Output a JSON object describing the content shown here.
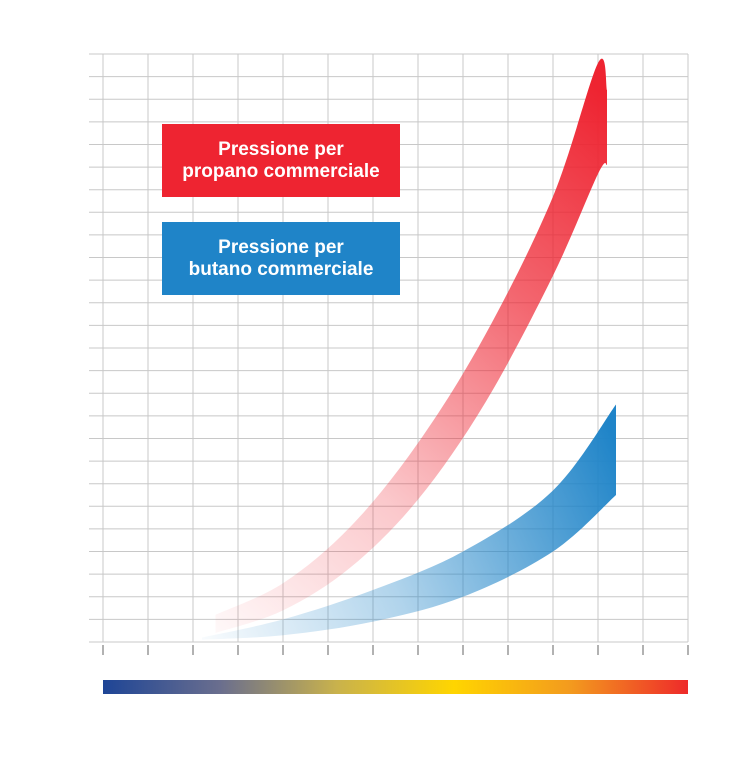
{
  "chart_data": {
    "type": "area",
    "title": "",
    "xlabel": "",
    "ylabel": "",
    "grid": true,
    "legend_placement": "top-left",
    "x": [
      0,
      1,
      2,
      3,
      4,
      5,
      6,
      7,
      8,
      9,
      10,
      11,
      12,
      13
    ],
    "xlim": [
      0,
      13
    ],
    "ylim": [
      0,
      26
    ],
    "temperature_bar": {
      "colors": [
        "#1e4596",
        "#6a6e8e",
        "#c9b24c",
        "#ffd500",
        "#f39a1e",
        "#ee2a2a"
      ]
    },
    "series": [
      {
        "name": "Pressione per\npropano commerciale",
        "legend_lines": [
          "Pressione per",
          "propano commerciale"
        ],
        "color": "#ee2431",
        "x": [
          2.5,
          4,
          5.5,
          7,
          8.5,
          10,
          11,
          11.2
        ],
        "lower": [
          0.4,
          1.4,
          3.3,
          6.3,
          10.6,
          16.2,
          20.7,
          21.1
        ],
        "upper": [
          1.2,
          2.6,
          5.1,
          8.8,
          13.6,
          19.7,
          25.6,
          24.4
        ]
      },
      {
        "name": "Pressione per\nbutano commerciale",
        "legend_lines": [
          "Pressione per",
          "butano commerciale"
        ],
        "color": "#1f84c8",
        "x": [
          2.2,
          4,
          6,
          8,
          10,
          11.4
        ],
        "lower": [
          0.1,
          0.3,
          0.9,
          2.0,
          4.0,
          6.5
        ],
        "upper": [
          0.2,
          1.0,
          2.3,
          4.0,
          6.7,
          10.5
        ]
      }
    ]
  }
}
